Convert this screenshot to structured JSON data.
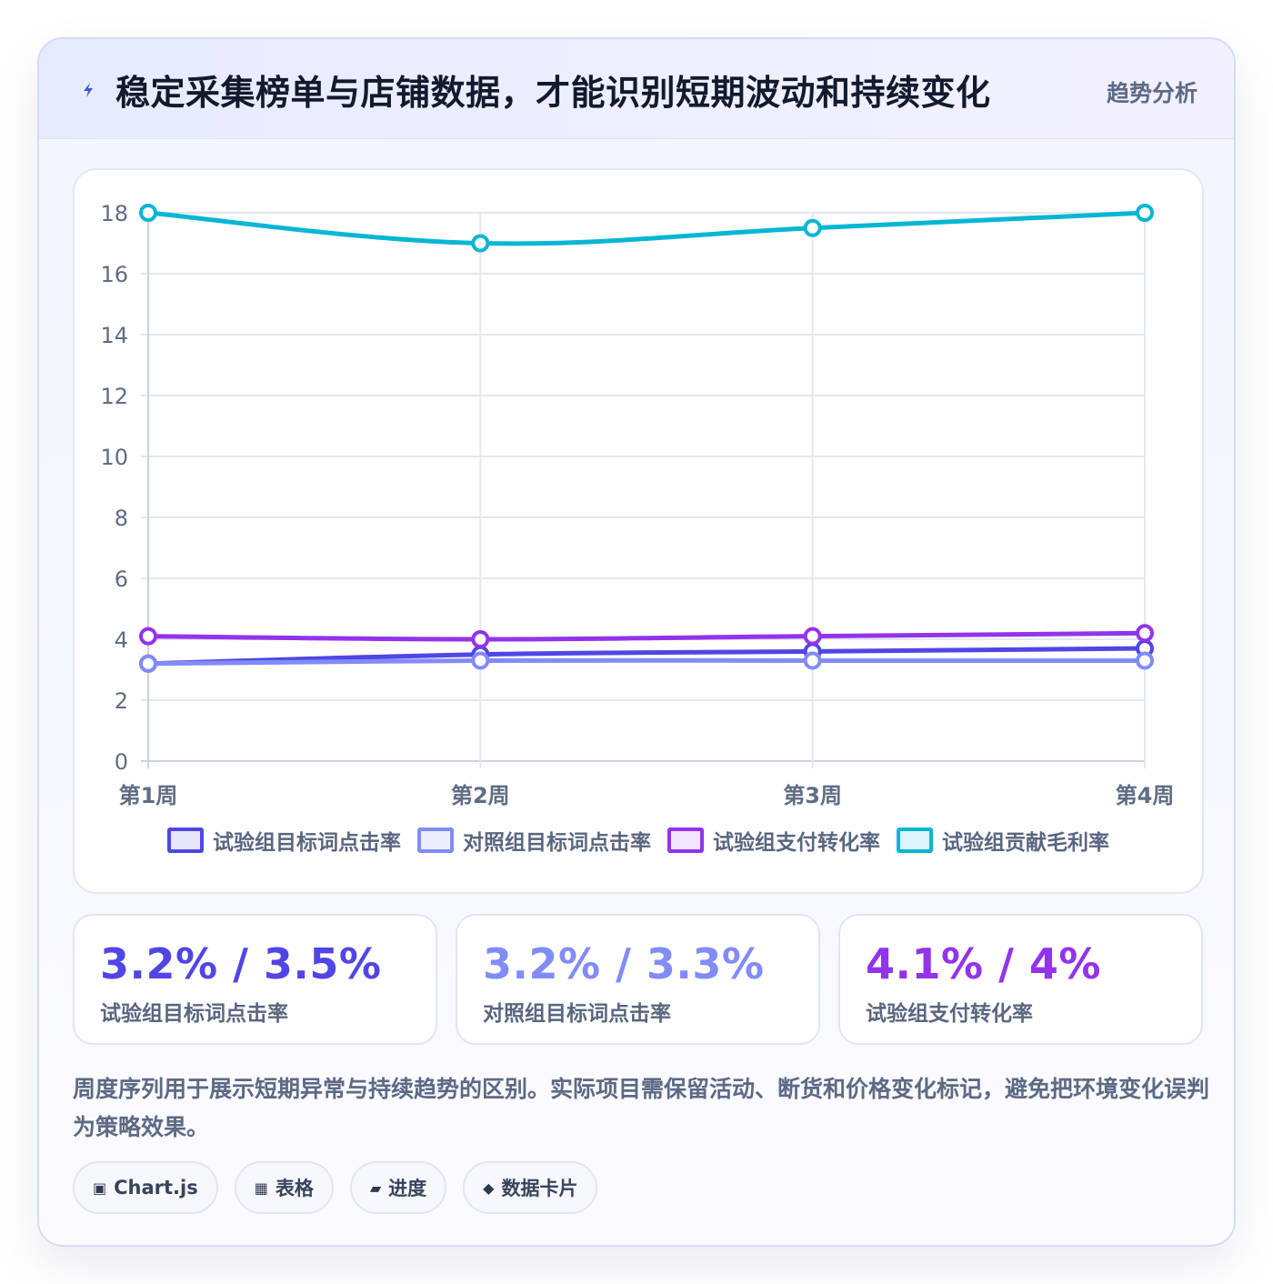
{
  "header": {
    "icon": "lightning-bolt-icon",
    "title": "稳定采集榜单与店铺数据，才能识别短期波动和持续变化",
    "tag": "趋势分析"
  },
  "chart_data": {
    "type": "line",
    "categories": [
      "第1周",
      "第2周",
      "第3周",
      "第4周"
    ],
    "ylim": [
      0,
      18
    ],
    "yticks": [
      0,
      2,
      4,
      6,
      8,
      10,
      12,
      14,
      16,
      18
    ],
    "grid": true,
    "legend_position": "bottom",
    "series": [
      {
        "name": "试验组目标词点击率",
        "values": [
          3.2,
          3.5,
          3.6,
          3.7
        ],
        "color": "#4f46e5",
        "fill": "#e7e6fb"
      },
      {
        "name": "对照组目标词点击率",
        "values": [
          3.2,
          3.3,
          3.3,
          3.3
        ],
        "color": "#818cf8",
        "fill": "#eceefe"
      },
      {
        "name": "试验组支付转化率",
        "values": [
          4.1,
          4.0,
          4.1,
          4.2
        ],
        "color": "#9333ea",
        "fill": "#f1e5fc"
      },
      {
        "name": "试验组贡献毛利率",
        "values": [
          18,
          17,
          17.5,
          18
        ],
        "color": "#06b6d4",
        "fill": "#dcf5fa"
      }
    ]
  },
  "stats": [
    {
      "value": "3.2% / 3.5%",
      "label": "试验组目标词点击率",
      "color": "#4f46e5"
    },
    {
      "value": "3.2% / 3.3%",
      "label": "对照组目标词点击率",
      "color": "#818cf8"
    },
    {
      "value": "4.1% / 4%",
      "label": "试验组支付转化率",
      "color": "#9333ea"
    }
  ],
  "note": "周度序列用于展示短期异常与持续趋势的区别。实际项目需保留活动、断货和价格变化标记，避免把环境变化误判为策略效果。",
  "chips": [
    {
      "icon": "▣",
      "label": "Chart.js"
    },
    {
      "icon": "▦",
      "label": "表格"
    },
    {
      "icon": "▰",
      "label": "进度"
    },
    {
      "icon": "◆",
      "label": "数据卡片"
    }
  ]
}
